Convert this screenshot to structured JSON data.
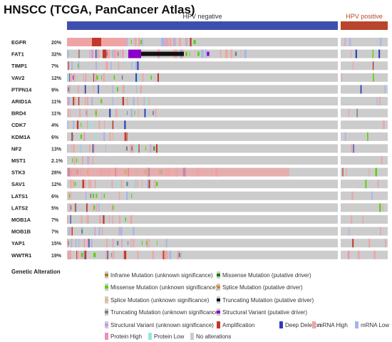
{
  "page": {
    "title": "HNSCC (TCGA, PanCancer Atlas)"
  },
  "chart_data": {
    "type": "heatmap",
    "title": "HNSCC (TCGA, PanCancer Atlas)",
    "track_groups": [
      {
        "label": "HPV negative",
        "color": "#3f4fae"
      },
      {
        "label": "HPV positive",
        "color": "#b8452c"
      }
    ],
    "genes": [
      {
        "name": "EGFR",
        "pct": "20%"
      },
      {
        "name": "FAT1",
        "pct": "32%"
      },
      {
        "name": "TIMP1",
        "pct": "7%"
      },
      {
        "name": "VAV2",
        "pct": "12%"
      },
      {
        "name": "PTPN14",
        "pct": "9%"
      },
      {
        "name": "ARID1A",
        "pct": "11%"
      },
      {
        "name": "BRD4",
        "pct": "11%"
      },
      {
        "name": "CDK7",
        "pct": "4%"
      },
      {
        "name": "KDM1A",
        "pct": "6%"
      },
      {
        "name": "NF2",
        "pct": "13%"
      },
      {
        "name": "MST1",
        "pct": "2.1%"
      },
      {
        "name": "STK3",
        "pct": "28%"
      },
      {
        "name": "SAV1",
        "pct": "12%"
      },
      {
        "name": "LATS1",
        "pct": "6%"
      },
      {
        "name": "LATS2",
        "pct": "5%"
      },
      {
        "name": "MOB1A",
        "pct": "7%"
      },
      {
        "name": "MOB1B",
        "pct": "7%"
      },
      {
        "name": "YAP1",
        "pct": "15%"
      },
      {
        "name": "WWTR1",
        "pct": "19%"
      }
    ],
    "legend_title": "Genetic Alteration",
    "legend": [
      {
        "label": "Inframe Mutation (unknown significance)",
        "color": "#a68028"
      },
      {
        "label": "Missense Mutation (putative driver)",
        "color": "#008000"
      },
      {
        "label": "Missense Mutation (unknown significance)",
        "color": "#53d400"
      },
      {
        "label": "Splice Mutation (putative driver)",
        "color": "#e5802b"
      },
      {
        "label": "Splice Mutation (unknown significance)",
        "color": "#f0b87b"
      },
      {
        "label": "Truncating Mutation (putative driver)",
        "color": "#000000"
      },
      {
        "label": "Truncating Mutation (unknown significance)",
        "color": "#708090"
      },
      {
        "label": "Structural Variant (putative driver)",
        "color": "#8b00c9"
      },
      {
        "label": "Structural Variant (unknown significance)",
        "color": "#ce92e8"
      },
      {
        "label": "Amplification",
        "color": "#c0392b"
      },
      {
        "label": "Deep Deletion",
        "color": "#2c3fb8"
      },
      {
        "label": "mRNA High",
        "color": "#eea4a4"
      },
      {
        "label": "mRNA Low",
        "color": "#a6b6e8"
      },
      {
        "label": "Protein High",
        "color": "#ef8fb8"
      },
      {
        "label": "Protein Low",
        "color": "#8fe8e0"
      },
      {
        "label": "No alterations",
        "color": "#cccccc"
      }
    ]
  }
}
